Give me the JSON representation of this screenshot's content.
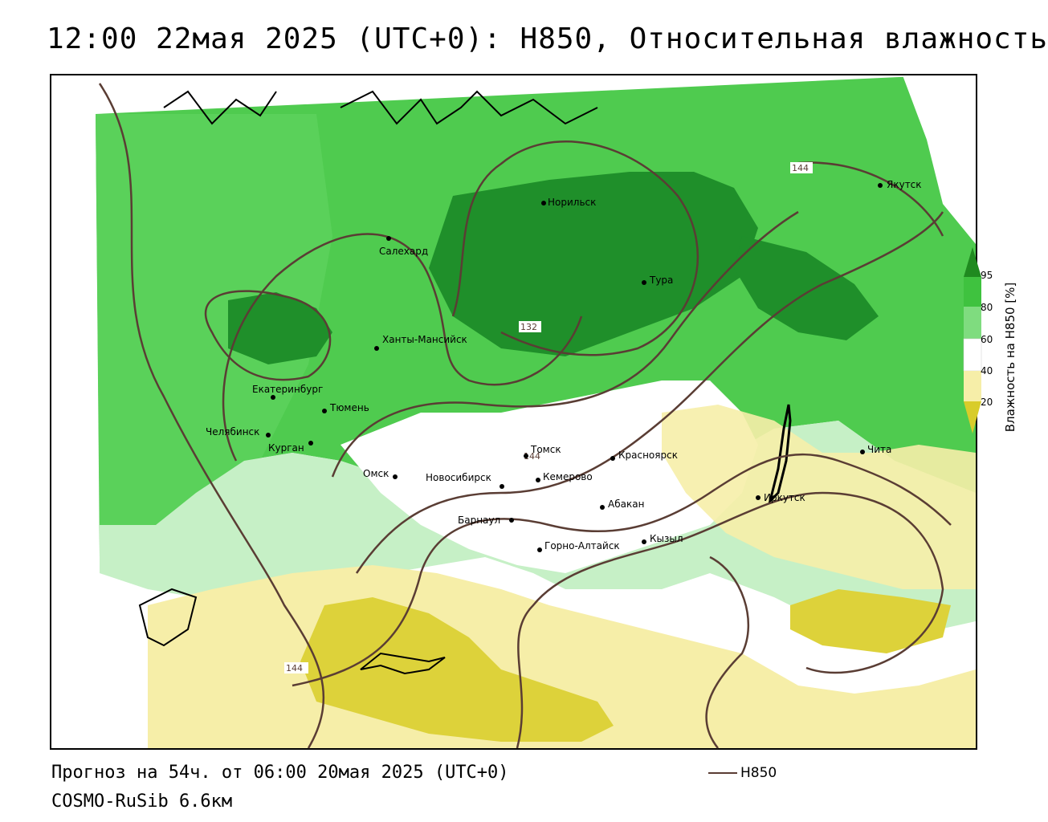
{
  "header": {
    "title": "12:00 22мая 2025 (UTC+0): H850, Относительная влажность"
  },
  "footer": {
    "forecast": "Прогноз на 54ч. от 06:00 20мая 2025 (UTC+0)",
    "model": "COSMO-RuSib 6.6км",
    "contour_legend_label": "H850"
  },
  "legend": {
    "title": "Влажность на H850 [%]",
    "ticks": [
      "95",
      "80",
      "60",
      "40",
      "20"
    ],
    "colors": {
      "c95": "#1f8a1f",
      "c80": "#3fc23f",
      "c60": "#bfefbf",
      "c40": "#ffffff",
      "c20": "#f4ec9c",
      "c0": "#d8cc2a"
    }
  },
  "map": {
    "contour_color": "#5a3d34",
    "contour_labels": [
      "144",
      "132",
      "144",
      "144"
    ],
    "cities": [
      {
        "name": "Якутск"
      },
      {
        "name": "Норильск"
      },
      {
        "name": "Салехард"
      },
      {
        "name": "Тура"
      },
      {
        "name": "Ханты-Мансийск"
      },
      {
        "name": "Екатеринбург"
      },
      {
        "name": "Тюмень"
      },
      {
        "name": "Челябинск"
      },
      {
        "name": "Курган"
      },
      {
        "name": "Омск"
      },
      {
        "name": "Томск"
      },
      {
        "name": "Красноярск"
      },
      {
        "name": "Новосибирск"
      },
      {
        "name": "Кемерово"
      },
      {
        "name": "Барнаул"
      },
      {
        "name": "Абакан"
      },
      {
        "name": "Кызыл"
      },
      {
        "name": "Горно-Алтайск"
      },
      {
        "name": "Иркутск"
      },
      {
        "name": "Чита"
      }
    ]
  }
}
